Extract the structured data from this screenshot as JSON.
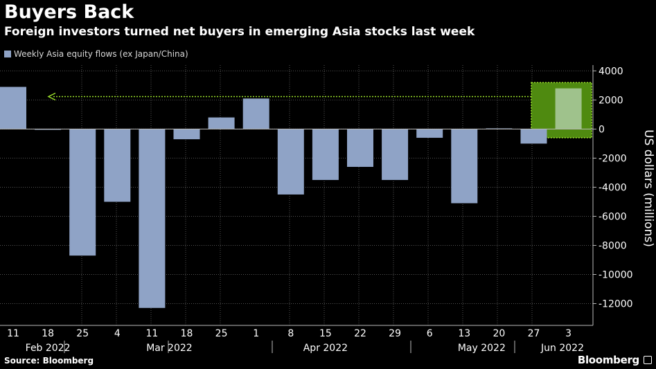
{
  "title": "Buyers Back",
  "subtitle": "Foreign investors turned net buyers in emerging Asia stocks last week",
  "source": "Source: Bloomberg",
  "brand": "Bloomberg",
  "colors": {
    "bar": "#8fa3c6",
    "highlight_fill": "#4f8a10",
    "highlight_border": "#9be12a",
    "highlight_bar": "#9fc28c",
    "gridline": "#555555"
  },
  "chart_data": {
    "type": "bar",
    "legend": [
      "Weekly Asia equity flows (ex Japan/China)"
    ],
    "legend_position": "top-left",
    "ylabel": "US dollars (millions)",
    "ylim": [
      -13500,
      4400
    ],
    "yticks": [
      4000,
      2000,
      0,
      -2000,
      -4000,
      -6000,
      -8000,
      -10000,
      -12000
    ],
    "y_axis_side": "right",
    "grid": true,
    "categories": [
      "11",
      "18",
      "25",
      "4",
      "11",
      "18",
      "25",
      "1",
      "8",
      "15",
      "22",
      "29",
      "6",
      "13",
      "20",
      "27",
      "3"
    ],
    "month_labels": [
      {
        "label": "Feb 2022",
        "start": 0,
        "end": 2
      },
      {
        "label": "Mar 2022",
        "start": 3,
        "end": 6
      },
      {
        "label": "Apr 2022",
        "start": 7,
        "end": 11
      },
      {
        "label": "May 2022",
        "start": 12,
        "end": 15
      },
      {
        "label": "Jun 2022",
        "start": 16,
        "end": 16
      }
    ],
    "series": [
      {
        "name": "Weekly Asia equity flows (ex Japan/China)",
        "values": [
          2900,
          -50,
          -8700,
          -5000,
          -12300,
          -700,
          800,
          2100,
          -4500,
          -3500,
          -2600,
          -3500,
          -600,
          -5100,
          50,
          -1000,
          2800
        ]
      }
    ],
    "highlight_index": 16,
    "annotation": "arrow from last bar back to the first week's level"
  }
}
